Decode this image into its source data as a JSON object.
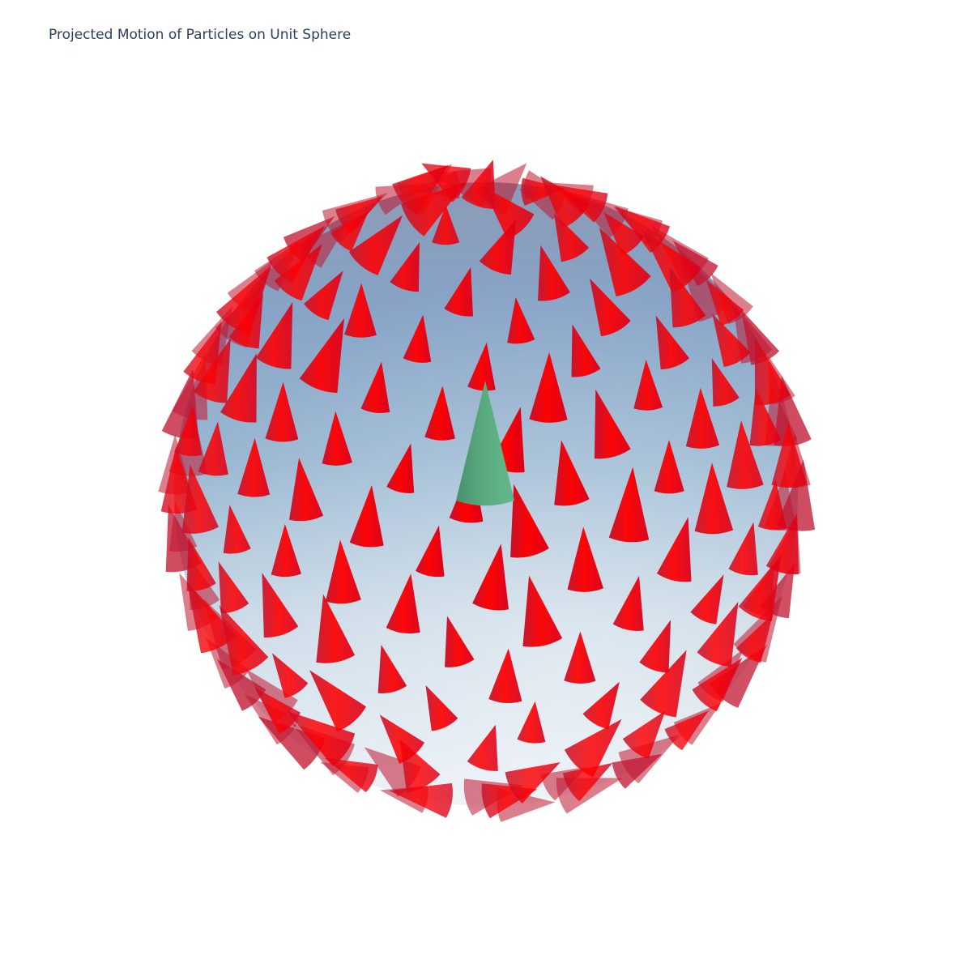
{
  "chart_data": {
    "type": "scatter",
    "subtype": "3d-cone-vector-field-on-sphere",
    "title": "Projected Motion of Particles on Unit Sphere",
    "sphere": {
      "radius": 1,
      "colorscale": [
        "#e8eef5",
        "#c8d8e6",
        "#9cbbd6",
        "#8aa5c8",
        "#8b9bb7"
      ],
      "opacity": 0.6
    },
    "reference_cone": {
      "color": "#5aac80"
    },
    "particle_cones": {
      "color": "#ff0000"
    },
    "grid": false,
    "axes_visible": false,
    "legend": "none"
  }
}
